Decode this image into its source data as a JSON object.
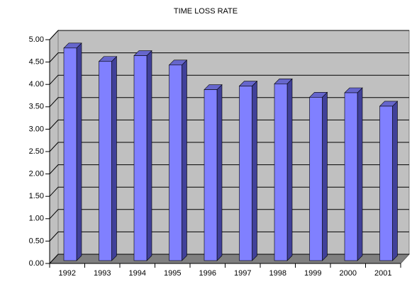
{
  "chart_data": {
    "type": "bar3d",
    "title": "TIME LOSS RATE",
    "categories": [
      "1992",
      "1993",
      "1994",
      "1995",
      "1996",
      "1997",
      "1998",
      "1999",
      "2000",
      "2001"
    ],
    "values": [
      4.75,
      4.45,
      4.58,
      4.37,
      3.82,
      3.9,
      3.95,
      3.65,
      3.75,
      3.45
    ],
    "color": "#8080ff",
    "ylim": [
      0,
      5
    ],
    "yticks": [
      {
        "value": 0,
        "label": "0.00"
      },
      {
        "value": 0.5,
        "label": "0.50"
      },
      {
        "value": 1,
        "label": "1.00"
      },
      {
        "value": 1.5,
        "label": "1.50"
      },
      {
        "value": 2,
        "label": "2.00"
      },
      {
        "value": 2.5,
        "label": "2.50"
      },
      {
        "value": 3,
        "label": "3.00"
      },
      {
        "value": 3.5,
        "label": "3.50"
      },
      {
        "value": 4,
        "label": "4.00"
      },
      {
        "value": 4.5,
        "label": "4.50"
      },
      {
        "value": 5,
        "label": "5.00"
      }
    ],
    "grid": true
  }
}
